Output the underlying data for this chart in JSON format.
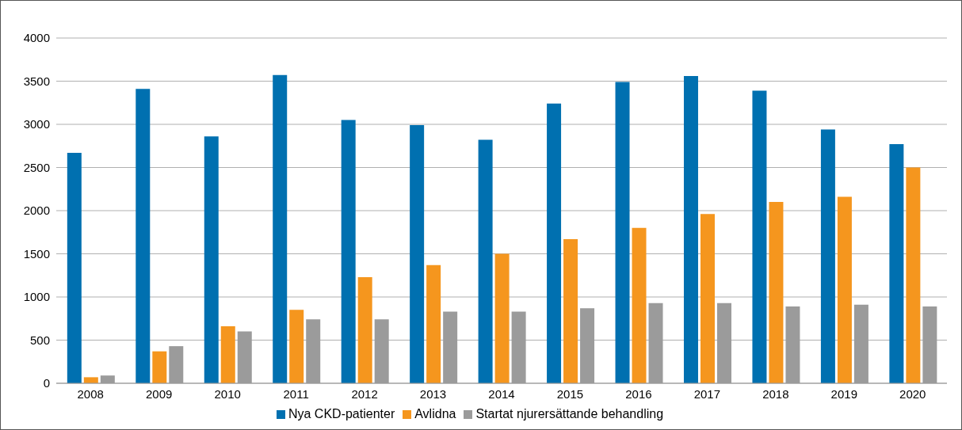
{
  "chart_data": {
    "type": "bar",
    "categories": [
      "2008",
      "2009",
      "2010",
      "2011",
      "2012",
      "2013",
      "2014",
      "2015",
      "2016",
      "2017",
      "2018",
      "2019",
      "2020"
    ],
    "series": [
      {
        "name": "Nya CKD-patienter",
        "color": "#0070b0",
        "values": [
          2670,
          3410,
          2860,
          3570,
          3050,
          2990,
          2820,
          3240,
          3490,
          3560,
          3390,
          2940,
          2770
        ]
      },
      {
        "name": "Avlidna",
        "color": "#f5961e",
        "values": [
          70,
          370,
          660,
          850,
          1230,
          1370,
          1500,
          1670,
          1800,
          1960,
          2100,
          2160,
          2500
        ]
      },
      {
        "name": "Startat njurersättande behandling",
        "color": "#9b9b9b",
        "values": [
          90,
          430,
          600,
          740,
          740,
          830,
          830,
          870,
          930,
          930,
          890,
          910,
          890
        ]
      }
    ],
    "ylim": [
      0,
      4000
    ],
    "yticks": [
      0,
      500,
      1000,
      1500,
      2000,
      2500,
      3000,
      3500,
      4000
    ],
    "grid": "y",
    "legend": "bottom"
  }
}
